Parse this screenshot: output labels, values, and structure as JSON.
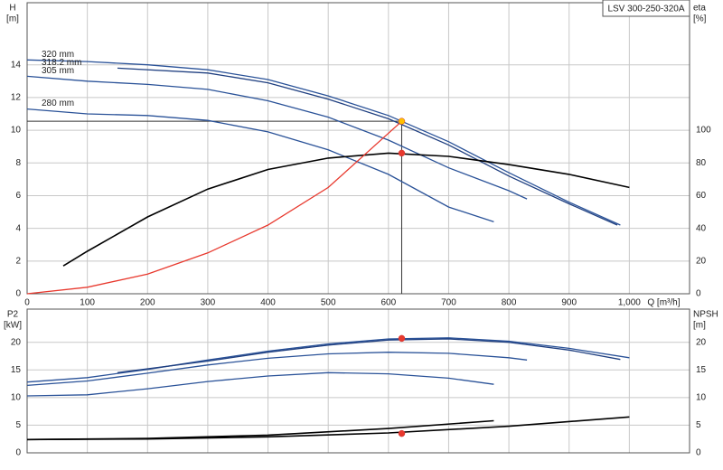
{
  "chart_data": [
    {
      "type": "line",
      "title": "LSV 300-250-320A",
      "ylabel": "H",
      "yunit": "[m]",
      "y2label": "eta",
      "y2unit": "[%]",
      "xlabel": "Q [m³/h]",
      "xlim": [
        0,
        1100
      ],
      "xticks": [
        0,
        100,
        200,
        300,
        400,
        500,
        600,
        700,
        800,
        900,
        {
          "value": 1000,
          "label": "1,000"
        }
      ],
      "ylim": [
        0,
        17.8
      ],
      "yticks": [
        0,
        2,
        4,
        6,
        8,
        10,
        12,
        14
      ],
      "y2lim": [
        0,
        178
      ],
      "y2ticks": [
        0,
        20,
        40,
        60,
        80,
        100
      ],
      "grid": true,
      "series": [
        {
          "name": "320 mm",
          "color": "#2a5298",
          "x": [
            0,
            100,
            200,
            300,
            400,
            500,
            600,
            700,
            800,
            900,
            985
          ],
          "values": [
            14.3,
            14.2,
            14.0,
            13.7,
            13.1,
            12.1,
            10.9,
            9.3,
            7.4,
            5.6,
            4.2
          ]
        },
        {
          "name": "318.2 mm",
          "color": "#1f3f80",
          "x": [
            150,
            300,
            400,
            500,
            600,
            700,
            800,
            900,
            980
          ],
          "values": [
            13.8,
            13.5,
            12.9,
            11.9,
            10.7,
            9.1,
            7.2,
            5.5,
            4.2
          ]
        },
        {
          "name": "305 mm",
          "color": "#2a5298",
          "x": [
            0,
            100,
            200,
            300,
            400,
            500,
            600,
            700,
            800,
            830
          ],
          "values": [
            13.3,
            13.0,
            12.8,
            12.5,
            11.8,
            10.8,
            9.4,
            7.7,
            6.3,
            5.8
          ]
        },
        {
          "name": "280 mm",
          "color": "#2a5298",
          "x": [
            0,
            100,
            200,
            300,
            400,
            500,
            600,
            700,
            775
          ],
          "values": [
            11.3,
            11.0,
            10.9,
            10.6,
            9.9,
            8.8,
            7.3,
            5.3,
            4.4
          ]
        },
        {
          "color": "#000000",
          "axis": "y2",
          "x": [
            60,
            100,
            200,
            300,
            400,
            500,
            600,
            700,
            800,
            900,
            1000
          ],
          "values": [
            17,
            26,
            47,
            64,
            76,
            83,
            86,
            84,
            79,
            73,
            65
          ]
        },
        {
          "color": "#e8392e",
          "x": [
            0,
            100,
            200,
            300,
            400,
            500,
            622
          ],
          "values": [
            0,
            0.4,
            1.2,
            2.5,
            4.2,
            6.5,
            10.55
          ]
        }
      ],
      "crosshair": {
        "x": 622,
        "y": 10.55,
        "color": "#333333"
      },
      "markers": [
        {
          "x": 622,
          "y": 10.55,
          "color": "#ffc000"
        },
        {
          "x": 622,
          "y": 86,
          "axis": "y2",
          "color": "#e8392e"
        }
      ]
    },
    {
      "type": "line",
      "ylabel": "P2",
      "yunit": "[kW]",
      "y2label": "NPSH",
      "y2unit": "[m]",
      "xlim": [
        0,
        1100
      ],
      "ylim": [
        0,
        26
      ],
      "yticks": [
        0,
        5,
        10,
        15,
        20
      ],
      "y2lim": [
        0,
        26
      ],
      "y2ticks": [
        0,
        5,
        10,
        15,
        20
      ],
      "grid": true,
      "series": [
        {
          "color": "#2a5298",
          "x": [
            0,
            100,
            200,
            300,
            400,
            500,
            600,
            700,
            800,
            900,
            1000
          ],
          "values": [
            12.8,
            13.6,
            15.1,
            16.8,
            18.4,
            19.7,
            20.6,
            20.8,
            20.2,
            18.9,
            17.2
          ]
        },
        {
          "color": "#1f3f80",
          "x": [
            150,
            300,
            400,
            500,
            600,
            700,
            800,
            900,
            985
          ],
          "values": [
            14.5,
            16.6,
            18.2,
            19.5,
            20.4,
            20.6,
            20.0,
            18.6,
            16.9
          ]
        },
        {
          "color": "#2a5298",
          "x": [
            0,
            100,
            200,
            300,
            400,
            500,
            600,
            700,
            800,
            830
          ],
          "values": [
            12.2,
            13.0,
            14.4,
            15.9,
            17.1,
            17.9,
            18.2,
            18.0,
            17.2,
            16.8
          ]
        },
        {
          "color": "#2a5298",
          "x": [
            0,
            100,
            200,
            300,
            400,
            500,
            600,
            700,
            775
          ],
          "values": [
            10.3,
            10.5,
            11.6,
            12.9,
            13.9,
            14.5,
            14.3,
            13.5,
            12.4
          ]
        },
        {
          "color": "#000000",
          "axis": "y2",
          "x": [
            0,
            200,
            400,
            600,
            800,
            1000
          ],
          "values": [
            2.4,
            2.5,
            2.9,
            3.6,
            4.8,
            6.5
          ]
        },
        {
          "color": "#000000",
          "axis": "y2",
          "x": [
            0,
            200,
            400,
            600,
            775
          ],
          "values": [
            2.4,
            2.6,
            3.2,
            4.4,
            5.8
          ]
        }
      ],
      "markers": [
        {
          "x": 622,
          "y": 20.7,
          "color": "#e8392e"
        },
        {
          "x": 622,
          "y": 3.5,
          "axis": "y2",
          "color": "#e8392e"
        }
      ]
    }
  ]
}
